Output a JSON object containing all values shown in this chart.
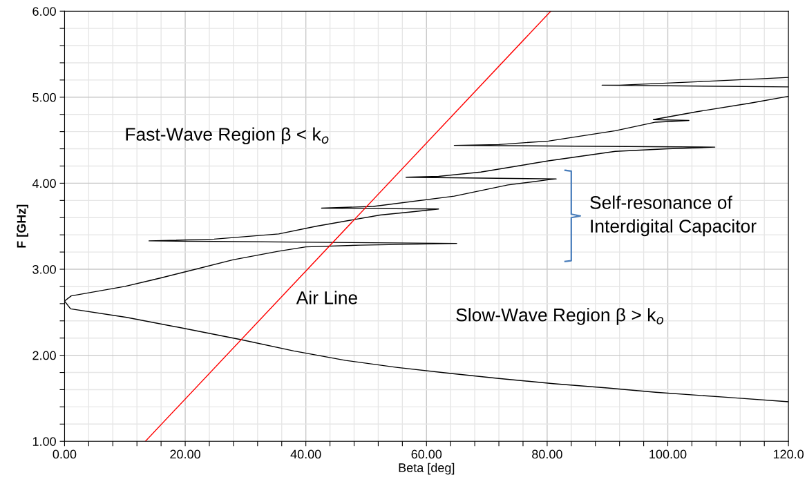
{
  "chart_data": {
    "type": "line",
    "xlabel": "Beta [deg]",
    "ylabel": "F [GHz]",
    "xlim": [
      0,
      120
    ],
    "ylim": [
      1,
      6
    ],
    "xticks": [
      {
        "value": 0,
        "label": "0.00"
      },
      {
        "value": 4,
        "label": null
      },
      {
        "value": 8,
        "label": null
      },
      {
        "value": 12,
        "label": null
      },
      {
        "value": 16,
        "label": null
      },
      {
        "value": 20,
        "label": "20.00"
      },
      {
        "value": 24,
        "label": null
      },
      {
        "value": 28,
        "label": null
      },
      {
        "value": 32,
        "label": null
      },
      {
        "value": 36,
        "label": null
      },
      {
        "value": 40,
        "label": "40.00"
      },
      {
        "value": 44,
        "label": null
      },
      {
        "value": 48,
        "label": null
      },
      {
        "value": 52,
        "label": null
      },
      {
        "value": 56,
        "label": null
      },
      {
        "value": 60,
        "label": "60.00"
      },
      {
        "value": 64,
        "label": null
      },
      {
        "value": 68,
        "label": null
      },
      {
        "value": 72,
        "label": null
      },
      {
        "value": 76,
        "label": null
      },
      {
        "value": 80,
        "label": "80.00"
      },
      {
        "value": 84,
        "label": null
      },
      {
        "value": 88,
        "label": null
      },
      {
        "value": 92,
        "label": null
      },
      {
        "value": 96,
        "label": null
      },
      {
        "value": 100,
        "label": "100.00"
      },
      {
        "value": 104,
        "label": null
      },
      {
        "value": 108,
        "label": null
      },
      {
        "value": 112,
        "label": null
      },
      {
        "value": 116,
        "label": null
      },
      {
        "value": 120,
        "label": "120.0"
      }
    ],
    "yticks": [
      {
        "value": 1,
        "label": "1.00"
      },
      {
        "value": 1.2,
        "label": null
      },
      {
        "value": 1.4,
        "label": null
      },
      {
        "value": 1.6,
        "label": null
      },
      {
        "value": 1.8,
        "label": null
      },
      {
        "value": 2,
        "label": "2.00"
      },
      {
        "value": 2.2,
        "label": null
      },
      {
        "value": 2.4,
        "label": null
      },
      {
        "value": 2.6,
        "label": null
      },
      {
        "value": 2.8,
        "label": null
      },
      {
        "value": 3,
        "label": "3.00"
      },
      {
        "value": 3.2,
        "label": null
      },
      {
        "value": 3.4,
        "label": null
      },
      {
        "value": 3.6,
        "label": null
      },
      {
        "value": 3.8,
        "label": null
      },
      {
        "value": 4,
        "label": "4.00"
      },
      {
        "value": 4.2,
        "label": null
      },
      {
        "value": 4.4,
        "label": null
      },
      {
        "value": 4.6,
        "label": null
      },
      {
        "value": 4.8,
        "label": null
      },
      {
        "value": 5,
        "label": "5.00"
      },
      {
        "value": 5.2,
        "label": null
      },
      {
        "value": 5.4,
        "label": null
      },
      {
        "value": 5.6,
        "label": null
      },
      {
        "value": 5.8,
        "label": null
      },
      {
        "value": 6,
        "label": "6.00"
      }
    ],
    "grid": true,
    "marker": "none",
    "line_style": "solid",
    "series": [
      {
        "color": "#000000",
        "x": [
          0,
          1,
          10.3,
          20,
          29.4,
          38,
          46.6,
          55,
          63.8,
          72,
          81,
          90,
          98,
          110,
          120
        ],
        "values": [
          2.63,
          2.54,
          2.44,
          2.31,
          2.18,
          2.05,
          1.94,
          1.86,
          1.79,
          1.73,
          1.67,
          1.62,
          1.57,
          1.51,
          1.46
        ]
      },
      {
        "color": "#000000",
        "x": [
          0,
          1.1,
          10,
          14.2,
          16,
          20,
          27.9,
          35.5,
          40,
          49,
          65,
          14,
          24.8,
          35.5,
          41.7,
          52.3,
          58,
          62,
          42.6,
          51.2,
          64.6,
          73.5,
          80.2,
          81.5,
          56.6,
          62,
          69,
          80.2,
          91.3,
          100,
          107.8,
          64.6,
          72,
          80.2,
          91.3,
          98,
          103.5,
          97.6,
          104.7,
          113.6,
          120
        ],
        "values": [
          2.63,
          2.69,
          2.8,
          2.87,
          2.9,
          2.97,
          3.11,
          3.21,
          3.26,
          3.28,
          3.3,
          3.33,
          3.35,
          3.41,
          3.5,
          3.63,
          3.67,
          3.7,
          3.71,
          3.73,
          3.85,
          3.98,
          4.04,
          4.05,
          4.07,
          4.08,
          4.13,
          4.26,
          4.37,
          4.4,
          4.42,
          4.44,
          4.45,
          4.49,
          4.61,
          4.71,
          4.73,
          4.74,
          4.83,
          4.93,
          5.01
        ]
      },
      {
        "color": "#000000",
        "x": [
          120,
          89.1,
          92,
          105,
          120
        ],
        "values": [
          5.12,
          5.14,
          5.14,
          5.18,
          5.23
        ]
      },
      {
        "color": "#ff0000",
        "x": [
          13.4,
          80.6
        ],
        "values": [
          1,
          6
        ]
      }
    ],
    "annotations": [
      "Fast-Wave Region β < k$_{o}$",
      "Air Line",
      "Slow-Wave Region β > k$_{o}$",
      "Self-resonance of\nInterdigital Capacitor"
    ]
  }
}
